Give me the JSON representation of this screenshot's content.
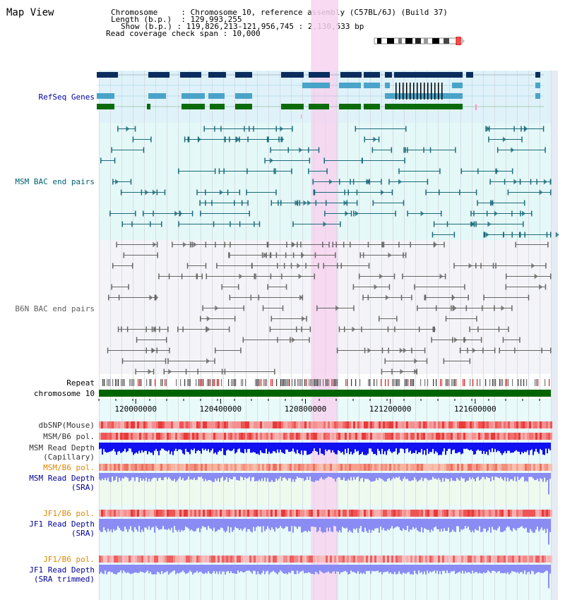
{
  "title": "Map View",
  "info": {
    "chromosome_key": "Chromosome",
    "chromosome_value": "Chromosome 10, reference assembly (C57BL/6J) (Build 37)",
    "length_key": "Length (b.p.)",
    "length_value": "129,993,255",
    "show_key": "Show (b.p.)",
    "show_value": "119,826,213-121,956,745 : 2,130,533 bp",
    "coverage_key": "Read coverage check span",
    "coverage_value": "10,000"
  },
  "tracks": {
    "refseq": "RefSeq Genes",
    "msm_bac": "MSM BAC end pairs",
    "b6n_bac": "B6N BAC end pairs",
    "repeat": "Repeat",
    "chromosome": "chromosome 10",
    "dbsnp": "dbSNP(Mouse)",
    "msm_b6_pol_1": "MSM/B6 pol.",
    "msm_read_depth_cap_1": "MSM Read Depth",
    "msm_read_depth_cap_2": "(Capillary)",
    "msm_b6_pol_2": "MSM/B6 pol.",
    "msm_read_depth_sra_1": "MSM Read Depth",
    "msm_read_depth_sra_2": "(SRA)",
    "jf1_b6_pol_1": "JF1/B6 pol.",
    "jf1_read_depth_sra_1": "JF1 Read Depth",
    "jf1_read_depth_sra_2": "(SRA)",
    "jf1_b6_pol_2": "JF1/B6 pol.",
    "jf1_read_depth_trim_1": "JF1 Read Depth",
    "jf1_read_depth_trim_2": "(SRA trimmed)"
  },
  "axis": {
    "ticks": [
      {
        "label": "120000000",
        "value": 120000000
      },
      {
        "label": "120400000",
        "value": 120400000
      },
      {
        "label": "120800000",
        "value": 120800000
      },
      {
        "label": "121200000",
        "value": 121200000
      },
      {
        "label": "121600000",
        "value": 121600000
      }
    ],
    "range_start": 119826213,
    "range_end": 121956745,
    "highlight_start": 120826000,
    "highlight_end": 120955000
  },
  "colors": {
    "refseq_bg": "#dff2f9",
    "msm_bg": "#e4f8f8",
    "b6n_bg": "#f4f4f8",
    "data_bg": "#e8fafa",
    "highlight": "#f7d4f0",
    "gene_navy": "#0b2d5e",
    "gene_teal": "#4aa3c8",
    "gene_green": "#0b6b0b",
    "msm_line": "#1a6a7a",
    "b6n_line": "#666666",
    "chromosome": "#006400",
    "refseq_label": "#0000a0",
    "msm_label": "#006070",
    "b6n_label": "#606060",
    "orange_label": "#e08800",
    "blue_label": "#000099",
    "read_depth_dark": "#1010f0",
    "read_depth_light": "#8a8cf4"
  },
  "icons": {
    "ideogram": "chromosome-ideogram-icon"
  }
}
